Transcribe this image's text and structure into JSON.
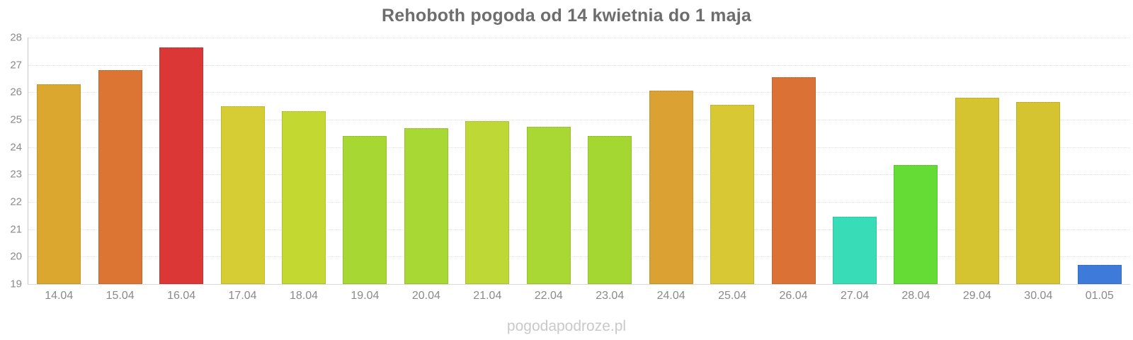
{
  "chart_data": {
    "type": "bar",
    "title": "Rehoboth pogoda od 14 kwietnia do 1 maja",
    "categories": [
      "14.04",
      "15.04",
      "16.04",
      "17.04",
      "18.04",
      "19.04",
      "20.04",
      "21.04",
      "22.04",
      "23.04",
      "24.04",
      "25.04",
      "26.04",
      "27.04",
      "28.04",
      "29.04",
      "30.04",
      "01.05"
    ],
    "values": [
      26.3,
      26.8,
      27.65,
      25.5,
      25.3,
      24.4,
      24.7,
      24.95,
      24.75,
      24.4,
      26.05,
      25.55,
      26.55,
      21.45,
      23.35,
      25.8,
      25.65,
      19.7
    ],
    "bar_colors": [
      "#dca72f",
      "#dc7434",
      "#db3737",
      "#d6cc33",
      "#c3d932",
      "#a6d733",
      "#a8d834",
      "#bed836",
      "#a9d834",
      "#a5d732",
      "#dba233",
      "#d8c934",
      "#db7134",
      "#38dcb6",
      "#65db36",
      "#d5c42f",
      "#d5c42f",
      "#3d7ad9"
    ],
    "xlabel": "",
    "ylabel": "",
    "ylim": [
      19,
      28
    ],
    "yticks": [
      19,
      20,
      21,
      22,
      23,
      24,
      25,
      26,
      27,
      28
    ],
    "grid": true,
    "legend": false
  },
  "watermark": "pogodapodroze.pl",
  "colors": {
    "background": "#ffffff",
    "title": "#6d6d6d",
    "axis_label": "#8a8a8a",
    "grid_line": "#e3e3e3",
    "axis_line": "#c9c9c9",
    "baseline": "#d9d9d9",
    "watermark": "#c9c9c9"
  }
}
